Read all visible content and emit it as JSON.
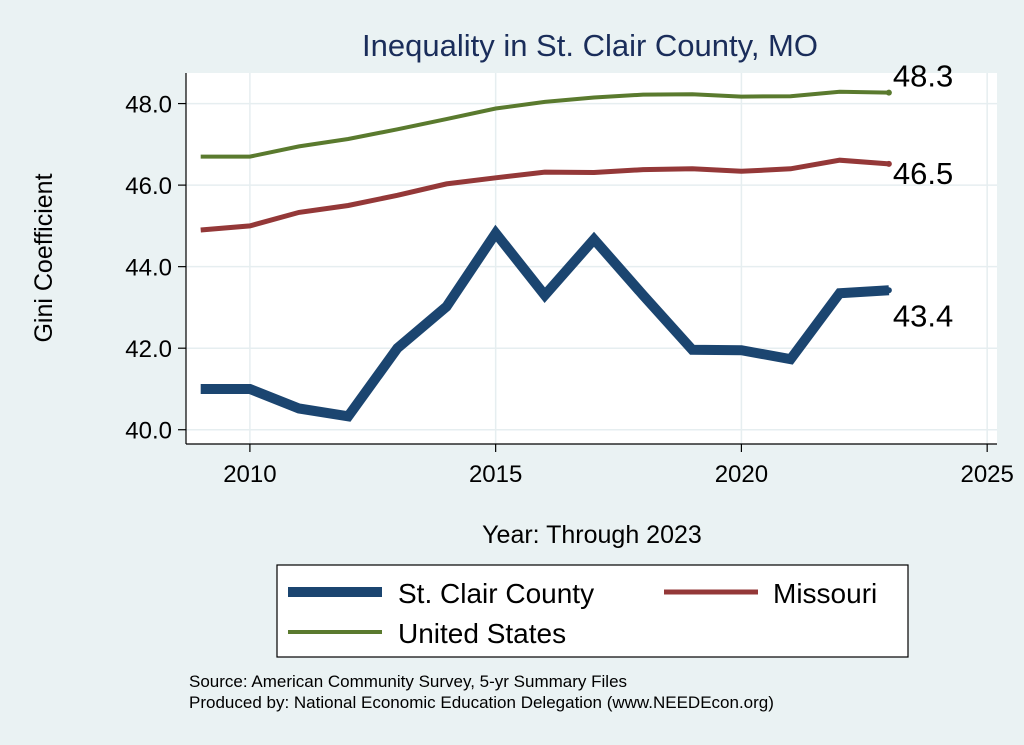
{
  "chart_data": {
    "type": "line",
    "title": "Inequality in St. Clair County, MO",
    "xlabel": "Year: Through 2023",
    "ylabel": "Gini Coefficient",
    "xlim": [
      2008.7,
      2025.2
    ],
    "ylim": [
      39.65,
      48.75
    ],
    "xticks": [
      2010,
      2015,
      2020,
      2025
    ],
    "yticks": [
      40,
      42,
      44,
      46,
      48
    ],
    "ytick_labels": [
      "40.0",
      "42.0",
      "44.0",
      "46.0",
      "48.0"
    ],
    "grid": true,
    "legend_position": "bottom",
    "x": [
      2009,
      2010,
      2011,
      2012,
      2013,
      2014,
      2015,
      2016,
      2017,
      2018,
      2019,
      2020,
      2021,
      2022,
      2023
    ],
    "series": [
      {
        "name": "St. Clair County",
        "color": "#1b4570",
        "values": [
          41.0,
          41.0,
          40.52,
          40.33,
          42.0,
          43.02,
          44.82,
          43.3,
          44.67,
          43.3,
          41.96,
          41.95,
          41.73,
          43.35,
          43.42
        ],
        "end_label": "43.4"
      },
      {
        "name": "Missouri",
        "color": "#943838",
        "values": [
          44.9,
          45.0,
          45.33,
          45.5,
          45.75,
          46.03,
          46.18,
          46.32,
          46.31,
          46.38,
          46.4,
          46.34,
          46.4,
          46.61,
          46.52
        ],
        "end_label": "46.5"
      },
      {
        "name": "United States",
        "color": "#5a7a2e",
        "values": [
          46.7,
          46.7,
          46.95,
          47.13,
          47.37,
          47.62,
          47.88,
          48.04,
          48.15,
          48.22,
          48.23,
          48.17,
          48.18,
          48.29,
          48.27
        ],
        "end_label": "48.3"
      }
    ]
  },
  "source": {
    "line1": "Source: American Community Survey, 5-yr Summary Files",
    "line2": "Produced by: National Economic Education Delegation (www.NEEDEcon.org)"
  },
  "colors": {
    "background": "#eaf2f3",
    "plot_background": "#ffffff",
    "title": "#1a2d5a"
  }
}
